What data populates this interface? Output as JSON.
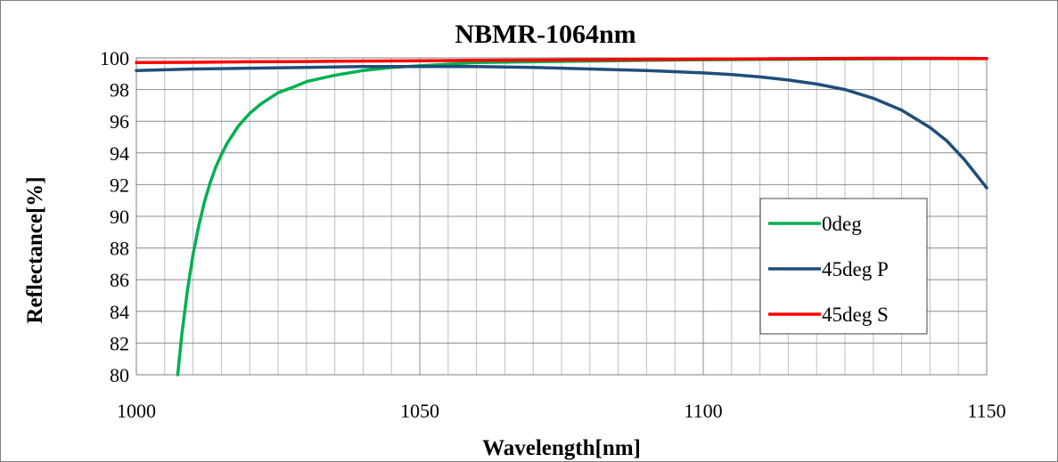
{
  "chart_data": {
    "type": "line",
    "title": "NBMR-1064nm",
    "xlabel": "Wavelength[nm]",
    "ylabel": "Reflectance[%]",
    "xlim": [
      1000,
      1150
    ],
    "ylim": [
      80,
      100
    ],
    "x_ticks": [
      "1000",
      "1050",
      "1100",
      "1150"
    ],
    "y_ticks": [
      "80",
      "82",
      "84",
      "86",
      "88",
      "90",
      "92",
      "94",
      "96",
      "98",
      "100"
    ],
    "grid": true,
    "legend_position": "right",
    "series": [
      {
        "name": "0deg",
        "color": "#00b050",
        "x": [
          1007.3,
          1008,
          1009,
          1010,
          1011,
          1012,
          1013,
          1014,
          1015,
          1016,
          1018,
          1020,
          1022,
          1025,
          1028,
          1030,
          1035,
          1040,
          1045,
          1050,
          1055,
          1060,
          1070,
          1080,
          1090,
          1100,
          1110,
          1120,
          1130,
          1140,
          1150
        ],
        "y": [
          80.0,
          82.5,
          85.3,
          87.6,
          89.4,
          90.9,
          92.1,
          93.1,
          93.9,
          94.6,
          95.7,
          96.5,
          97.1,
          97.8,
          98.2,
          98.5,
          98.9,
          99.2,
          99.4,
          99.5,
          99.6,
          99.7,
          99.75,
          99.8,
          99.85,
          99.88,
          99.9,
          99.92,
          99.94,
          99.95,
          99.95
        ]
      },
      {
        "name": "45deg P",
        "color": "#1f4e79",
        "x": [
          1000,
          1010,
          1020,
          1030,
          1040,
          1050,
          1060,
          1070,
          1080,
          1090,
          1100,
          1105,
          1110,
          1115,
          1120,
          1125,
          1130,
          1135,
          1140,
          1143,
          1146,
          1148,
          1150
        ],
        "y": [
          99.2,
          99.3,
          99.35,
          99.4,
          99.45,
          99.45,
          99.45,
          99.4,
          99.3,
          99.2,
          99.05,
          98.95,
          98.8,
          98.6,
          98.35,
          98.0,
          97.45,
          96.7,
          95.6,
          94.75,
          93.6,
          92.7,
          91.8
        ]
      },
      {
        "name": "45deg S",
        "color": "#ff0000",
        "x": [
          1000,
          1010,
          1020,
          1030,
          1040,
          1050,
          1060,
          1070,
          1080,
          1090,
          1100,
          1110,
          1120,
          1130,
          1140,
          1150
        ],
        "y": [
          99.7,
          99.72,
          99.75,
          99.77,
          99.8,
          99.82,
          99.84,
          99.86,
          99.88,
          99.9,
          99.92,
          99.94,
          99.96,
          99.97,
          99.97,
          99.96
        ]
      }
    ]
  }
}
